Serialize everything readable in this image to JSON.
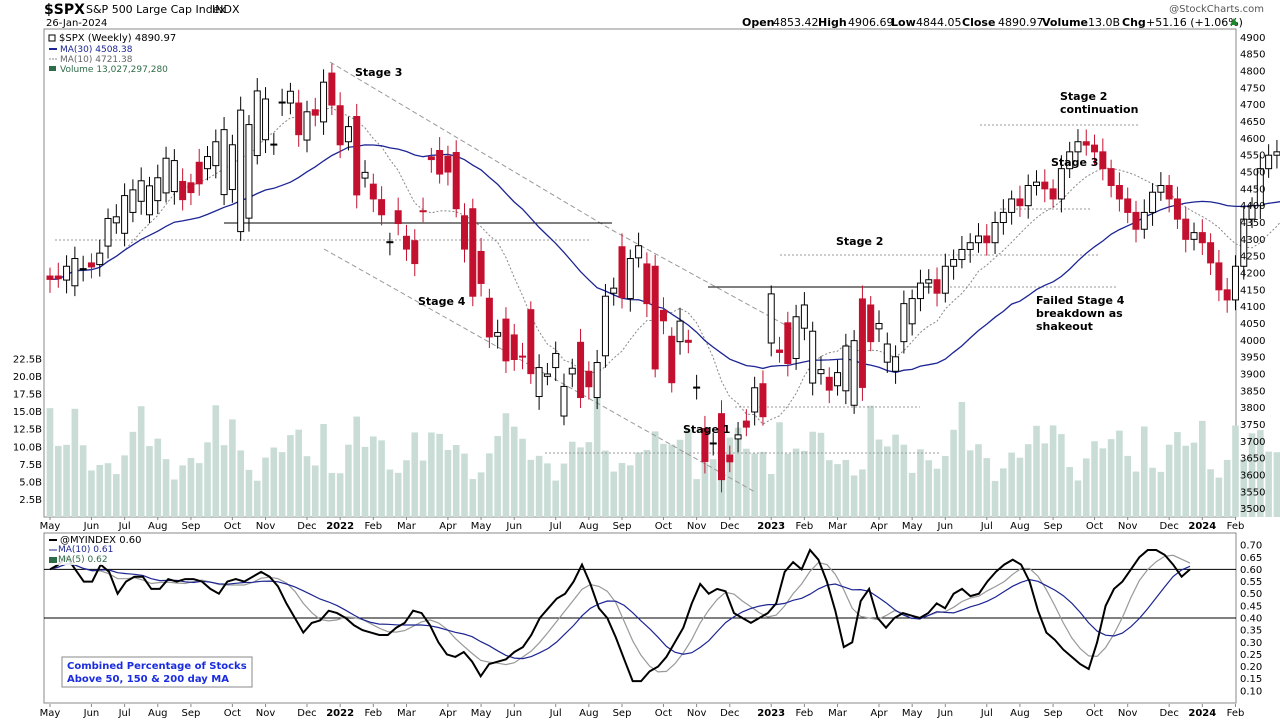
{
  "header": {
    "symbol": "$SPX",
    "name": "S&P 500 Large Cap Index",
    "exchange": "INDX",
    "date": "26-Jan-2024",
    "watermark": "@StockCharts.com",
    "open_label": "Open",
    "open": "4853.42",
    "high_label": "High",
    "high": "4906.69",
    "low_label": "Low",
    "low": "4844.05",
    "close_label": "Close",
    "close": "4890.97",
    "volume_label": "Volume",
    "volume": "13.0B",
    "chg_label": "Chg",
    "chg": "+51.16 (+1.06%)"
  },
  "legend_top": {
    "price": "$SPX (Weekly) 4890.97",
    "ma30": "MA(30) 4508.38",
    "ma10": "MA(10) 4721.38",
    "volume": "Volume 13,027,297,280"
  },
  "legend_bottom": {
    "ind": "@MYINDEX 0.60",
    "ma10": "MA(10) 0.61",
    "ma5": "MA(5) 0.62"
  },
  "annotations": {
    "stage3_left": "Stage 3",
    "stage4": "Stage 4",
    "stage1": "Stage 1",
    "stage2": "Stage 2",
    "stage3_right": "Stage 3",
    "stage2c_1": "Stage 2",
    "stage2c_2": "continuation",
    "failed_1": "Failed Stage 4",
    "failed_2": "breakdown as",
    "failed_3": "shakeout"
  },
  "info_box": {
    "line1": "Combined Percentage of Stocks",
    "line2": "Above 50, 150 & 200 day MA"
  },
  "colors": {
    "up": "#ffffff",
    "down": "#c4102f",
    "candle_outline": "#000000",
    "ma30": "#1c2593",
    "ma10": "#888888",
    "volume": "#c9ddd6",
    "indicator": "#000000",
    "ind_ma10": "#1c2593",
    "ind_ma5": "#999999",
    "info_text": "#1a2ce0"
  },
  "chart_data": [
    {
      "type": "candlestick",
      "title": "$SPX S&P 500 Large Cap Index INDX",
      "interval": "weekly",
      "x_tick_labels": [
        "May",
        "Jun",
        "Jul",
        "Aug",
        "Sep",
        "Oct",
        "Nov",
        "Dec",
        "2022",
        "Feb",
        "Mar",
        "Apr",
        "May",
        "Jun",
        "Jul",
        "Aug",
        "Sep",
        "Oct",
        "Nov",
        "Dec",
        "2023",
        "Feb",
        "Mar",
        "Apr",
        "May",
        "Jun",
        "Jul",
        "Aug",
        "Sep",
        "Oct",
        "Nov",
        "Dec",
        "2024",
        "Feb"
      ],
      "x_tick_week_index": [
        0,
        5,
        9,
        13,
        17,
        22,
        26,
        31,
        35,
        39,
        43,
        48,
        52,
        56,
        61,
        65,
        69,
        74,
        78,
        82,
        87,
        91,
        95,
        100,
        104,
        108,
        113,
        117,
        121,
        126,
        130,
        135,
        139,
        143
      ],
      "price_ticks": [
        3500,
        3550,
        3600,
        3650,
        3700,
        3750,
        3800,
        3850,
        3900,
        3950,
        4000,
        4050,
        4100,
        4150,
        4200,
        4250,
        4300,
        4350,
        4400,
        4450,
        4500,
        4550,
        4600,
        4650,
        4700,
        4750,
        4800,
        4850,
        4900
      ],
      "ylim": [
        3475,
        4925
      ],
      "volume_ticks": [
        "2.5B",
        "5.0B",
        "7.5B",
        "10.0B",
        "12.5B",
        "15.0B",
        "17.5B",
        "20.0B",
        "22.5B"
      ],
      "volume_tick_values": [
        2.5,
        5,
        7.5,
        10,
        12.5,
        15,
        17.5,
        20,
        22.5
      ],
      "series": [
        {
          "name": "$SPX (Weekly)",
          "kind": "candles",
          "open": [
            4191,
            4191,
            4179,
            4162,
            4213,
            4230,
            4225,
            4280,
            4349,
            4318,
            4380,
            4413,
            4373,
            4415,
            4438,
            4442,
            4472,
            4468,
            4529,
            4510,
            4519,
            4433,
            4448,
            4323,
            4363,
            4549,
            4596,
            4581,
            4705,
            4705,
            4705,
            4595,
            4685,
            4649,
            4794,
            4697,
            4590,
            4665,
            4482,
            4464,
            4418,
            4290,
            4385,
            4309,
            4296,
            4385,
            4545,
            4564,
            4547,
            4558,
            4370,
            4391,
            4264,
            4125,
            4012,
            4063,
            4016,
            3953,
            4091,
            3833,
            3893,
            3919,
            3775,
            3900,
            3994,
            3908,
            3830,
            3954,
            4140,
            4278,
            4124,
            4245,
            4227,
            4220,
            4089,
            4012,
            3996,
            4000,
            3861,
            3738,
            3692,
            3782,
            3659,
            3707,
            3760,
            3787,
            3871,
            3992,
            3971,
            4052,
            3946,
            4036,
            3873,
            3901,
            3890,
            3865,
            3850,
            3807,
            4123,
            4105,
            4034,
            3935,
            3908,
            3996,
            4049
          ],
          "close": [
            4181,
            4183,
            4220,
            4243,
            4213,
            4218,
            4259,
            4362,
            4367,
            4430,
            4447,
            4474,
            4459,
            4483,
            4541,
            4534,
            4418,
            4439,
            4465,
            4546,
            4590,
            4626,
            4581,
            4684,
            4641,
            4741,
            4717,
            4583,
            4708,
            4740,
            4611,
            4679,
            4669,
            4767,
            4699,
            4581,
            4635,
            4432,
            4499,
            4420,
            4373,
            4293,
            4347,
            4271,
            4228,
            4383,
            4537,
            4494,
            4500,
            4391,
            4271,
            4131,
            4169,
            4010,
            4023,
            3939,
            3943,
            3952,
            3901,
            3919,
            3900,
            3961,
            3863,
            3917,
            3830,
            3862,
            3934,
            4131,
            4155,
            4127,
            4243,
            4281,
            4109,
            3915,
            4058,
            3874,
            4057,
            3994,
            3861,
            3640,
            3695,
            3586,
            3639,
            3719,
            3742,
            3859,
            3773,
            4138,
            3964,
            3931,
            4070,
            4105,
            4027,
            3913,
            3852,
            3904,
            3983,
            3999,
            3860,
            3996,
            4050,
            3989,
            3951,
            4109,
            4124
          ]
        }
      ]
    },
    {
      "type": "line",
      "title": "@MYINDEX",
      "series_values_note": "Combined Percentage of Stocks Above 50, 150 & 200 day MA",
      "ylim": [
        0.05,
        0.75
      ],
      "y_ticks": [
        0.1,
        0.15,
        0.2,
        0.25,
        0.3,
        0.35,
        0.4,
        0.45,
        0.5,
        0.55,
        0.6,
        0.65,
        0.7
      ],
      "reference_lines": [
        0.6,
        0.4
      ],
      "series": [
        {
          "name": "@MYINDEX",
          "values": [
            0.6,
            0.62,
            0.65,
            0.6,
            0.55,
            0.55,
            0.62,
            0.59,
            0.5,
            0.55,
            0.57,
            0.57,
            0.52,
            0.52,
            0.56,
            0.55,
            0.56,
            0.56,
            0.55,
            0.52,
            0.5,
            0.55,
            0.56,
            0.55,
            0.57,
            0.59,
            0.57,
            0.53,
            0.46,
            0.4,
            0.34,
            0.38,
            0.39,
            0.43,
            0.42,
            0.4,
            0.37,
            0.35,
            0.34,
            0.33,
            0.33,
            0.36,
            0.38,
            0.43,
            0.42,
            0.37,
            0.3,
            0.25,
            0.24,
            0.26,
            0.22,
            0.16,
            0.21,
            0.22,
            0.23,
            0.26,
            0.28,
            0.33,
            0.4,
            0.44,
            0.48,
            0.5,
            0.55,
            0.62,
            0.54,
            0.44,
            0.4,
            0.32,
            0.23,
            0.14,
            0.14,
            0.18,
            0.2,
            0.24,
            0.3,
            0.36,
            0.46,
            0.54,
            0.5,
            0.52,
            0.51,
            0.42,
            0.4,
            0.38,
            0.4,
            0.42,
            0.46,
            0.59,
            0.63,
            0.6,
            0.68,
            0.64,
            0.55,
            0.43,
            0.28,
            0.3,
            0.47,
            0.52,
            0.4,
            0.36,
            0.4,
            0.42,
            0.41,
            0.4,
            0.42,
            0.46,
            0.44,
            0.5,
            0.52,
            0.49,
            0.5,
            0.55,
            0.59,
            0.62,
            0.64,
            0.62,
            0.55,
            0.43,
            0.34,
            0.31,
            0.27,
            0.24,
            0.21,
            0.19,
            0.3,
            0.45,
            0.52,
            0.55,
            0.6,
            0.65,
            0.68,
            0.68,
            0.66,
            0.62,
            0.57,
            0.6
          ]
        },
        {
          "name": "MA(10)"
        },
        {
          "name": "MA(5)"
        }
      ]
    }
  ]
}
